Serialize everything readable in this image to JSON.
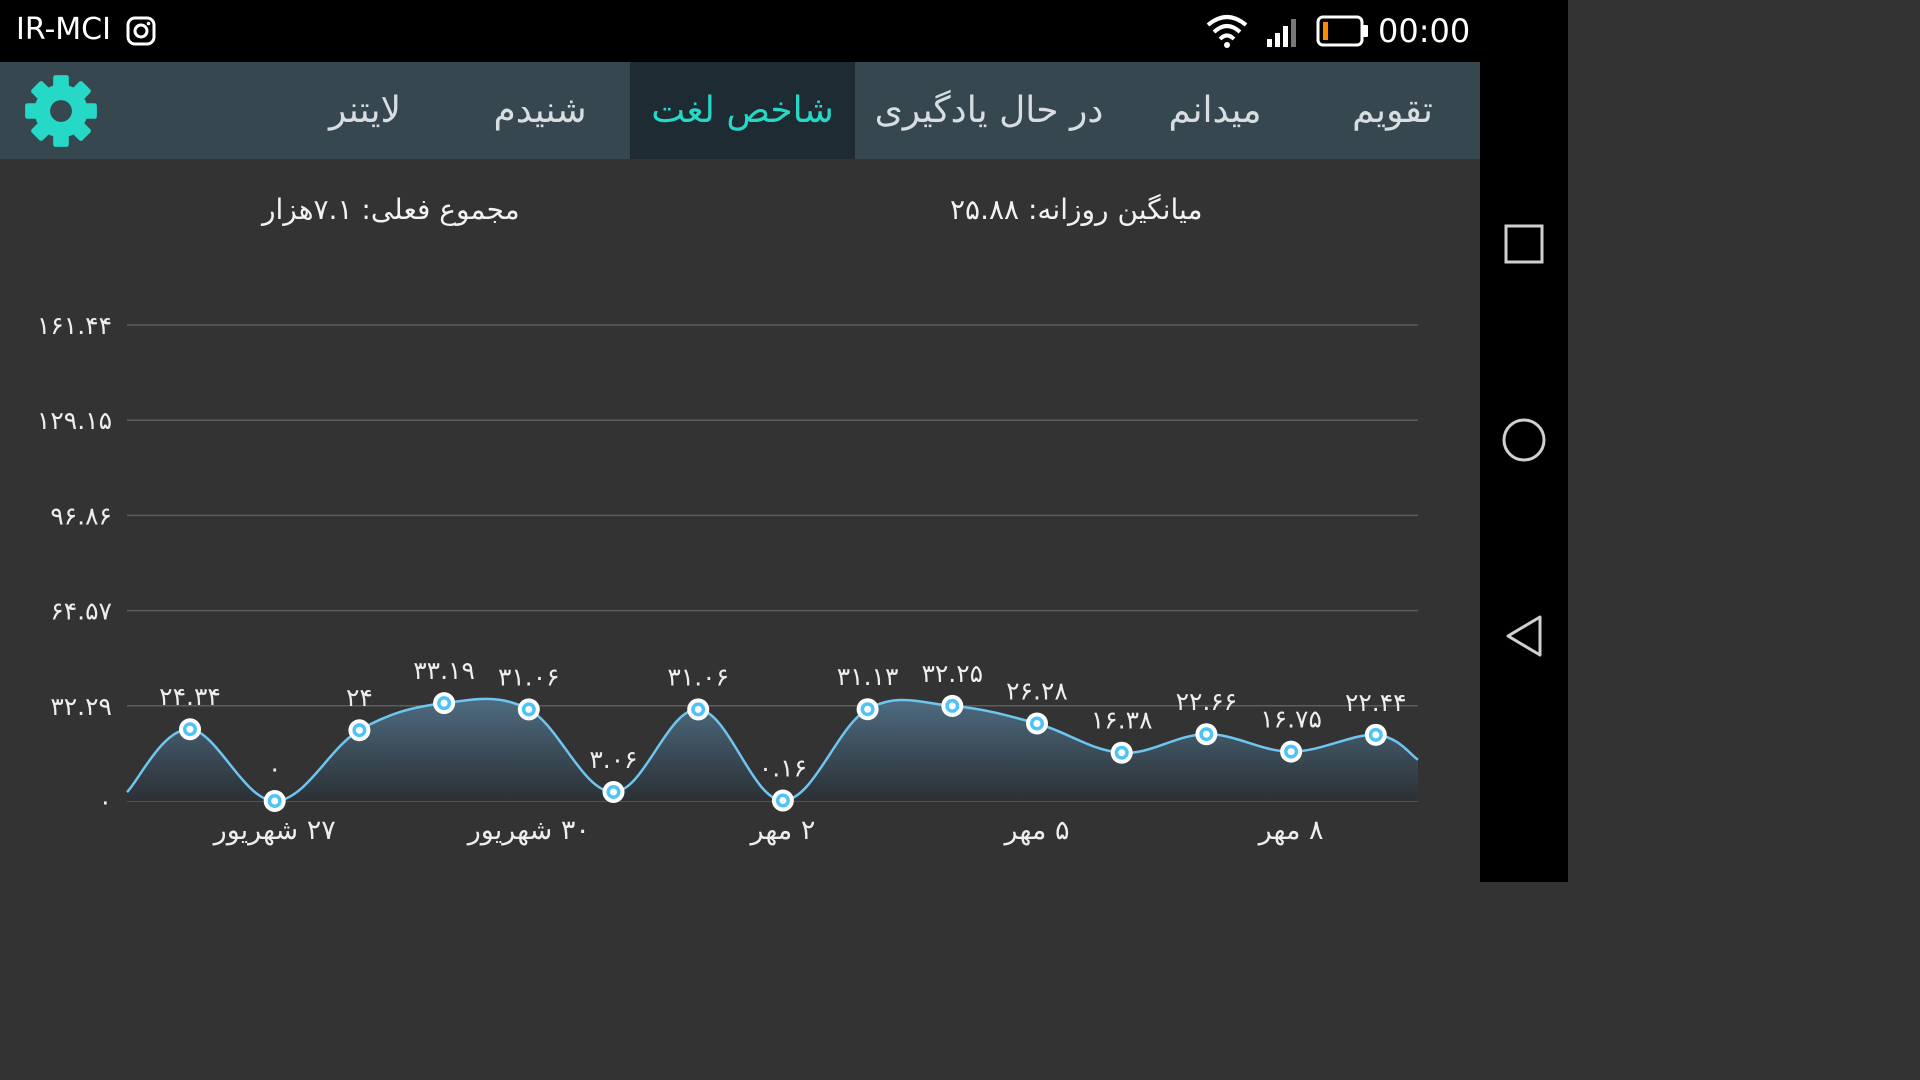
{
  "status_bar": {
    "carrier": "IR-MCI",
    "time": "00:00"
  },
  "tabs": [
    {
      "label": "تقویم"
    },
    {
      "label": "میدانم"
    },
    {
      "label": "در حال یادگیری"
    },
    {
      "label": "شاخص لغت",
      "active": true
    },
    {
      "label": "شنیدم"
    },
    {
      "label": "لایتنر"
    }
  ],
  "summary": {
    "daily_average": "میانگین روزانه: ۲۵.۸۸",
    "current_total": "مجموع فعلی: ۷.۱هزار"
  },
  "colors": {
    "accent": "#26d9c7",
    "tab_bar": "#37474f",
    "active_tab": "#1e2b33",
    "background": "#333333",
    "line": "#6ec6f0"
  },
  "icons": {
    "settings": "gear-icon",
    "wifi": "wifi-icon",
    "signal": "signal-icon",
    "battery": "battery-icon",
    "instagram": "instagram-icon"
  },
  "chart_data": {
    "type": "area",
    "x_tick_labels": [
      "۲۷ شهریور",
      "۳۰ شهریور",
      "۲ مهر",
      "۵ مهر",
      "۸ مهر"
    ],
    "x_tick_indices": [
      1,
      4,
      7,
      10,
      13
    ],
    "y_ticks": [
      0,
      32.29,
      64.57,
      96.86,
      129.15,
      161.44
    ],
    "y_tick_labels": [
      "۰",
      "۳۲.۲۹",
      "۶۴.۵۷",
      "۹۶.۸۶",
      "۱۲۹.۱۵",
      "۱۶۱.۴۴"
    ],
    "ylim": [
      0,
      161.44
    ],
    "grid": true,
    "series": [
      {
        "values": [
          24.34,
          0,
          24,
          33.19,
          31.06,
          3.06,
          31.06,
          0.16,
          31.13,
          32.25,
          26.28,
          16.38,
          22.66,
          16.75,
          22.44
        ],
        "labels": [
          "۲۴.۳۴",
          "۰",
          "۲۴",
          "۳۳.۱۹",
          "۳۱.۰۶",
          "۳.۰۶",
          "۳۱.۰۶",
          "۰.۱۶",
          "۳۱.۱۳",
          "۳۲.۲۵",
          "۲۶.۲۸",
          "۱۶.۳۸",
          "۲۲.۶۶",
          "۱۶.۷۵",
          "۲۲.۴۴"
        ]
      }
    ],
    "edge_values": {
      "start": 3,
      "end": 14
    }
  }
}
